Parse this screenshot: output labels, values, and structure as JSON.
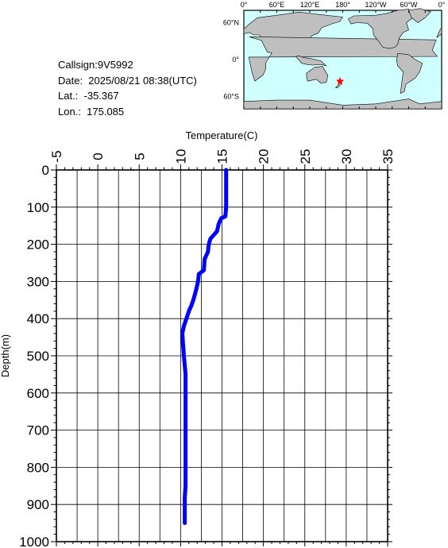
{
  "meta": {
    "callsign": "Callsign:9V5992",
    "date": "Date:  2025/08/21 08:38(UTC)",
    "lat": "Lat.:  -35.367",
    "lon": "Lon.:  175.085"
  },
  "map": {
    "top_labels": [
      "0°",
      "60°E",
      "120°E",
      "180°",
      "120°W",
      "60°W",
      "0°"
    ],
    "side_labels": [
      "60°N",
      "0°",
      "60°S"
    ],
    "ocean_color": "#cfffff",
    "land_color": "#bfbfbf",
    "marker_color": "#ff0000",
    "marker_icon": "star-icon"
  },
  "chart_data": {
    "type": "line",
    "xlabel": "Temperature(C)",
    "ylabel": "Depth(m)",
    "xlim": [
      -5,
      35
    ],
    "ylim": [
      0,
      1000
    ],
    "y_inverted": true,
    "x_axis_position": "top",
    "grid": true,
    "x_ticks": [
      "-5",
      "0",
      "5",
      "10",
      "15",
      "20",
      "25",
      "30",
      "35"
    ],
    "y_ticks": [
      "0",
      "100",
      "200",
      "300",
      "400",
      "500",
      "600",
      "700",
      "800",
      "900",
      "1000"
    ],
    "series": [
      {
        "color": "#0000ff",
        "points": [
          [
            15.5,
            0
          ],
          [
            15.5,
            50
          ],
          [
            15.5,
            100
          ],
          [
            15.4,
            125
          ],
          [
            14.9,
            130
          ],
          [
            14.6,
            145
          ],
          [
            14.4,
            165
          ],
          [
            13.6,
            185
          ],
          [
            13.4,
            200
          ],
          [
            13.3,
            220
          ],
          [
            12.9,
            240
          ],
          [
            12.8,
            270
          ],
          [
            12.2,
            280
          ],
          [
            12.1,
            300
          ],
          [
            11.9,
            320
          ],
          [
            11.6,
            345
          ],
          [
            11.3,
            365
          ],
          [
            11.0,
            380
          ],
          [
            10.7,
            400
          ],
          [
            10.4,
            420
          ],
          [
            10.2,
            440
          ],
          [
            10.3,
            470
          ],
          [
            10.4,
            500
          ],
          [
            10.6,
            550
          ],
          [
            10.6,
            650
          ],
          [
            10.6,
            750
          ],
          [
            10.6,
            850
          ],
          [
            10.5,
            880
          ],
          [
            10.5,
            910
          ],
          [
            10.5,
            950
          ]
        ]
      }
    ]
  }
}
